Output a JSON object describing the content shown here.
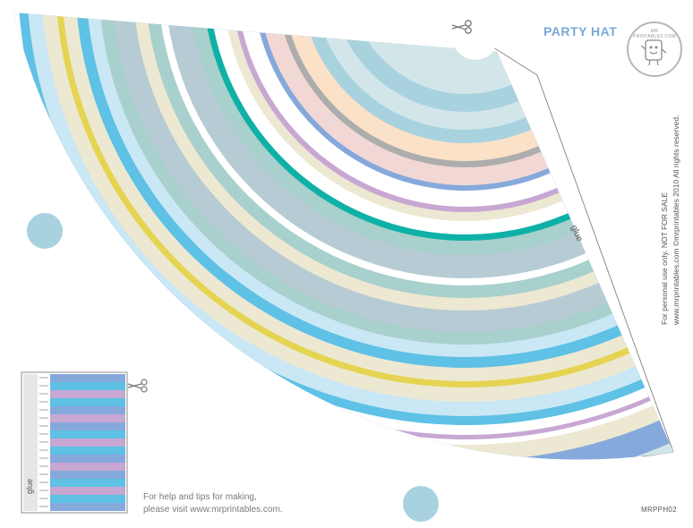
{
  "title": "PARTY HAT",
  "logo": {
    "text": "MR PRINTABLES.COM"
  },
  "rights": {
    "line1": "For personal use only.  NOT FOR SALE",
    "line2": "www.mrprintables.com  ©mrprintables 2010  All rights reserved."
  },
  "help": {
    "line1": "For help and tips for making,",
    "line2": "please visit www.mrprintables.com."
  },
  "code": "MRPPH02",
  "glue_label": "glue",
  "icons": [
    "scissors-icon",
    "scissors-icon",
    "mascot-icon"
  ],
  "colors": {
    "light_blue": "#a9d2df",
    "pale_blue": "#d2e6ea",
    "steel_blue": "#86a9dc",
    "cream": "#ede8d2",
    "lilac": "#c8a7d3",
    "cyan": "#5ec1e5",
    "yellow": "#e4d452",
    "sky": "#c9e7f4",
    "slate": "#b7cbd5",
    "mint": "#a8d0cc",
    "teal": "#0fb1a6",
    "grey": "#adadad",
    "peach": "#fbe1c7",
    "rose": "#f2d8d4"
  }
}
